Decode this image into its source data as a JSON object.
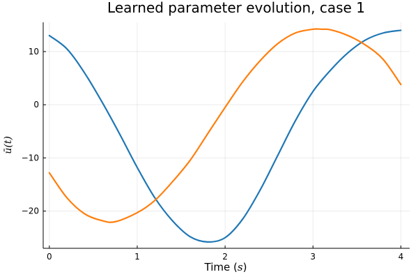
{
  "chart_data": {
    "type": "line",
    "title": "Learned parameter evolution, case 1",
    "xlabel": "Time (s)",
    "xlabel_prefix": "Time (",
    "xlabel_unit": "s",
    "xlabel_suffix": ")",
    "ylabel": "ū(t)",
    "xlim": [
      -0.07,
      4.1
    ],
    "ylim": [
      -27,
      15.5
    ],
    "xticks": [
      0,
      1,
      2,
      3,
      4
    ],
    "xtick_labels": [
      "0",
      "1",
      "2",
      "3",
      "4"
    ],
    "yticks": [
      -20,
      -10,
      0,
      10
    ],
    "ytick_labels": [
      "−20",
      "−10",
      "0",
      "10"
    ],
    "grid": true,
    "legend": "none",
    "series": [
      {
        "color": "#1f77b4",
        "x": [
          0,
          0.2,
          0.4,
          0.6,
          0.8,
          1.0,
          1.2,
          1.4,
          1.6,
          1.8,
          2.0,
          2.2,
          2.4,
          2.6,
          2.8,
          3.0,
          3.2,
          3.4,
          3.6,
          3.8,
          4.0
        ],
        "y": [
          13,
          10.5,
          6,
          0.5,
          -5.5,
          -11.8,
          -17.5,
          -21.8,
          -24.8,
          -25.8,
          -25,
          -21.5,
          -16,
          -9.5,
          -3,
          2.5,
          6.5,
          9.8,
          12.2,
          13.5,
          14
        ]
      },
      {
        "color": "#ff7f0e",
        "x": [
          0,
          0.2,
          0.4,
          0.6,
          0.75,
          1.0,
          1.2,
          1.4,
          1.6,
          1.8,
          2.0,
          2.2,
          2.4,
          2.6,
          2.8,
          3.0,
          3.1,
          3.2,
          3.4,
          3.6,
          3.8,
          4.0
        ],
        "y": [
          -12.8,
          -17.5,
          -20.5,
          -21.8,
          -22,
          -20.3,
          -18,
          -14.5,
          -10.5,
          -5.5,
          -0.5,
          4.3,
          8.3,
          11.5,
          13.5,
          14.2,
          14.2,
          14.1,
          13,
          11.2,
          8.5,
          3.8
        ]
      }
    ]
  }
}
